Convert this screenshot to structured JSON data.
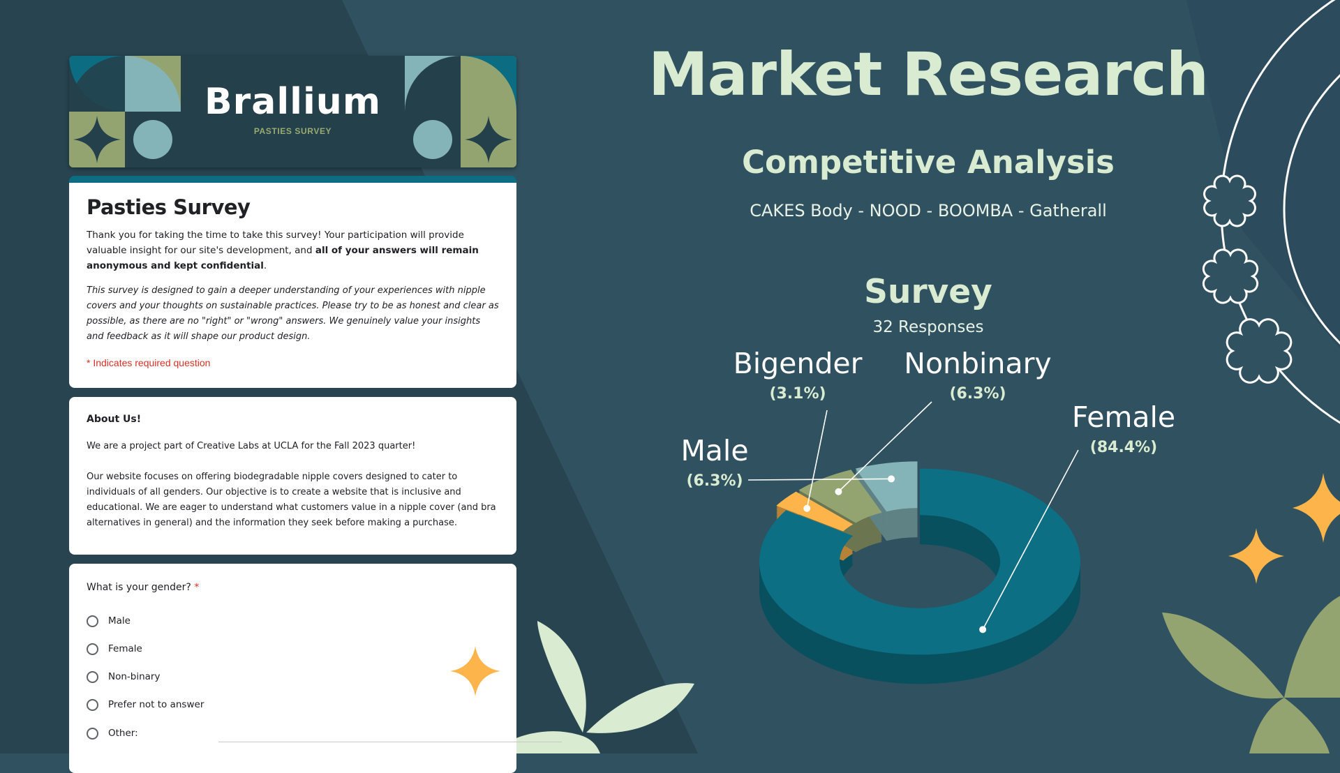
{
  "colors": {
    "background": "#30515f",
    "dark_band": "#274450",
    "accent_teal": "#0c6d82",
    "olive": "#94a471",
    "light_blue": "#84b4b8",
    "orange": "#fdb54b",
    "mint": "#d9ecd2"
  },
  "form": {
    "brand_name": "Brallium",
    "brand_subtitle": "PASTIES SURVEY",
    "title": "Pasties Survey",
    "intro_text_start": "Thank you for taking the time to take this survey! Your participation will provide valuable insight for our site's development, and ",
    "intro_text_bold": "all of your answers will remain anonymous and kept confidential",
    "intro_text_end": ".",
    "intro_italic": "This survey is designed to gain a deeper understanding of your experiences with nipple covers and your thoughts on sustainable practices. Please try to be as honest and clear as possible, as there are no \"right\" or \"wrong\" answers. We genuinely value your insights and feedback as it will shape our product design.",
    "required_note": "* Indicates required question",
    "about_title": "About Us!",
    "about_p1": "We are a project part of Creative Labs at UCLA for the Fall 2023 quarter!",
    "about_p2": "Our website focuses on offering biodegradable nipple covers designed to cater to individuals of all genders. Our objective is to create a website that is inclusive and educational. We are eager to understand what customers value in a nipple cover (and bra alternatives in general) and the information they seek before making a purchase.",
    "question": "What is your gender?",
    "required_star": "*",
    "options": [
      "Male",
      "Female",
      "Non-binary",
      "Prefer not to answer",
      "Other:"
    ]
  },
  "slide": {
    "title": "Market Research",
    "subtitle": "Competitive Analysis",
    "competitors": "CAKES Body - NOOD - BOOMBA - Gatherall",
    "survey_title": "Survey",
    "survey_count": "32 Responses"
  },
  "chart_data": {
    "type": "pie",
    "variant": "3d-donut",
    "total_responses": 32,
    "categories": [
      "Female",
      "Bigender",
      "Nonbinary",
      "Male"
    ],
    "values": [
      84.4,
      3.1,
      6.3,
      6.3
    ],
    "value_labels": [
      "(84.4%)",
      "(3.1%)",
      "(6.3%)",
      "(6.3%)"
    ],
    "colors": [
      "#0d6f84",
      "#fdb54b",
      "#94a471",
      "#84b4b8"
    ],
    "exploded": [
      false,
      true,
      true,
      true
    ]
  }
}
